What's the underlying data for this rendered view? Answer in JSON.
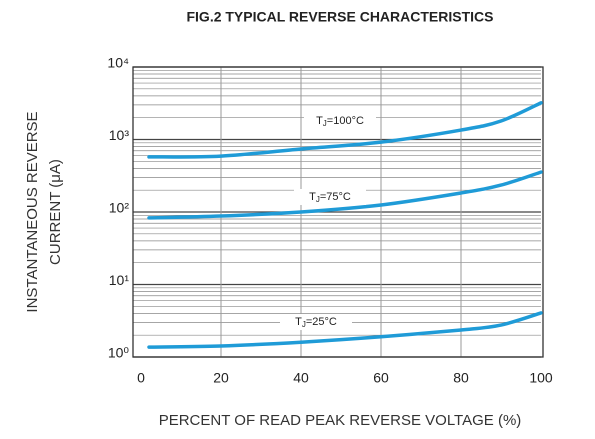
{
  "chart_data": {
    "type": "line",
    "title": "FIG.2 TYPICAL REVERSE CHARACTERISTICS",
    "x_label": "PERCENT OF READ PEAK REVERSE VOLTAGE (%)",
    "y_label": [
      "INSTANTANEOUS REVERSE",
      "CURRENT (μA)"
    ],
    "x": [
      2,
      20,
      40,
      60,
      80,
      90,
      100
    ],
    "series": [
      {
        "label": {
          "main": "T",
          "sub": "J",
          "rest": "=100°C"
        },
        "color": "#1f9bd7",
        "values": [
          575,
          590,
          740,
          920,
          1350,
          1800,
          3200
        ]
      },
      {
        "label": {
          "main": "T",
          "sub": "J",
          "rest": "=75°C"
        },
        "color": "#1f9bd7",
        "values": [
          83,
          88,
          100,
          125,
          183,
          235,
          355
        ]
      },
      {
        "label": {
          "main": "T",
          "sub": "J",
          "rest": "=25°C"
        },
        "color": "#1f9bd7",
        "values": [
          1.37,
          1.42,
          1.6,
          1.9,
          2.36,
          2.76,
          4.05
        ]
      }
    ],
    "xlim": [
      0,
      100
    ],
    "xticks": [
      0,
      20,
      40,
      60,
      80,
      100
    ],
    "ylim": [
      1,
      10000
    ],
    "yticks": [
      {
        "value": 1,
        "label": "10⁰"
      },
      {
        "value": 10,
        "label": "10¹"
      },
      {
        "value": 100,
        "label": "10²"
      },
      {
        "value": 1000,
        "label": "10³"
      },
      {
        "value": 10000,
        "label": "10⁴"
      }
    ],
    "log_y": true,
    "grid": true,
    "minor_grid": true
  }
}
